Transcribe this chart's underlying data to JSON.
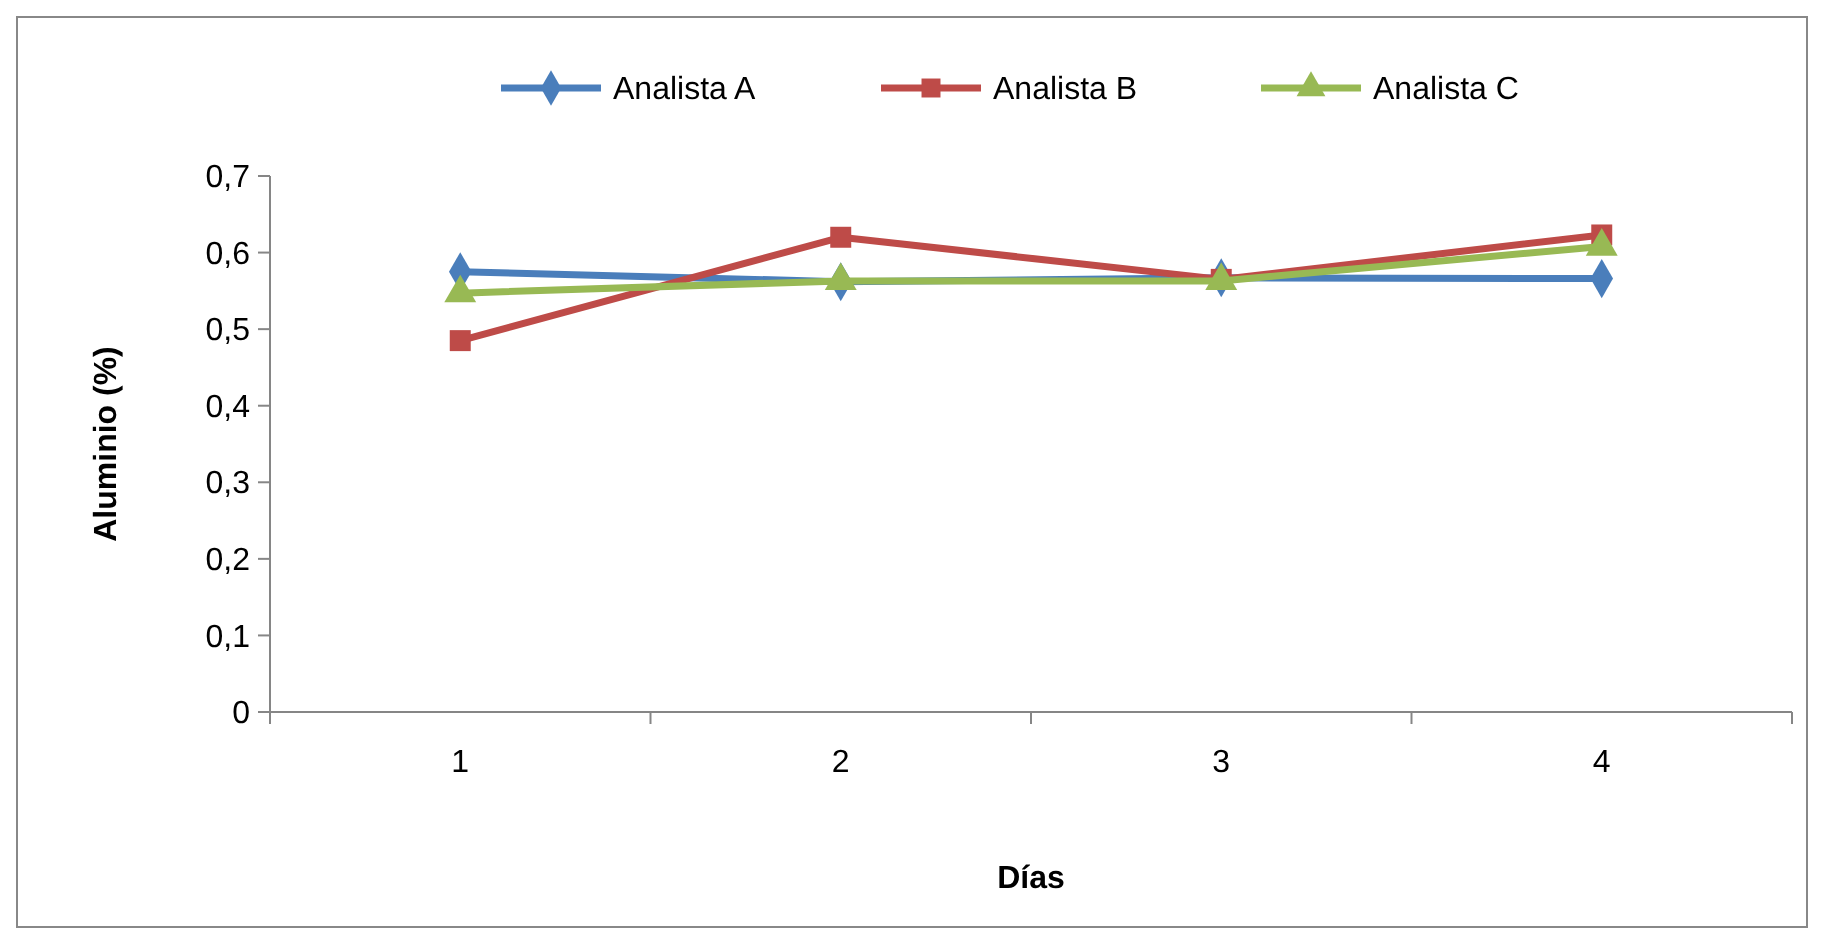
{
  "chart_data": {
    "type": "line",
    "xlabel": "Días",
    "ylabel": "Aluminio (%)",
    "categories": [
      "1",
      "2",
      "3",
      "4"
    ],
    "series": [
      {
        "name": "Analista A",
        "color": "#4a7ebb",
        "marker": "diamond",
        "values": [
          0.575,
          0.562,
          0.567,
          0.566
        ]
      },
      {
        "name": "Analista B",
        "color": "#be4b48",
        "marker": "square",
        "values": [
          0.485,
          0.62,
          0.565,
          0.623
        ]
      },
      {
        "name": "Analista C",
        "color": "#98b954",
        "marker": "triangle",
        "values": [
          0.547,
          0.563,
          0.563,
          0.608
        ]
      }
    ],
    "ylim": [
      0,
      0.7
    ],
    "yticks": [
      {
        "value": 0,
        "label": "0"
      },
      {
        "value": 0.1,
        "label": "0,1"
      },
      {
        "value": 0.2,
        "label": "0,2"
      },
      {
        "value": 0.3,
        "label": "0,3"
      },
      {
        "value": 0.4,
        "label": "0,4"
      },
      {
        "value": 0.5,
        "label": "0,5"
      },
      {
        "value": 0.6,
        "label": "0,6"
      },
      {
        "value": 0.7,
        "label": "0,7"
      }
    ],
    "grid": false,
    "legend": "top"
  }
}
